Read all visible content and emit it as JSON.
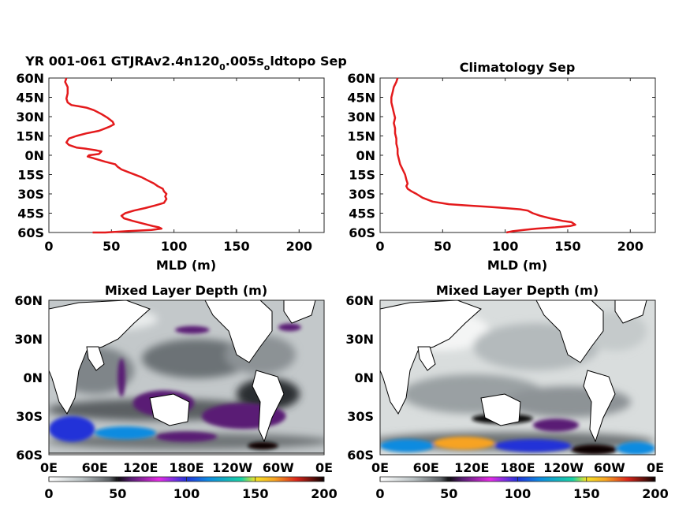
{
  "chart_data": [
    {
      "type": "line",
      "title": "YR 001-061 GTJRAv2.4n120_0.005s_oldtopo Sep",
      "title_parts": {
        "t1": "YR 001-061 GTJRAv2.4n120",
        "sub1": "0",
        "t2": ".005s",
        "sub2": "o",
        "t3": "ldtopo Sep"
      },
      "xlabel": "MLD (m)",
      "ylabel": "",
      "xlim": [
        0,
        220
      ],
      "ylim": [
        -60,
        60
      ],
      "xticks": [
        "0",
        "50",
        "100",
        "150",
        "200"
      ],
      "xtick_values": [
        0,
        50,
        100,
        150,
        200
      ],
      "yticks": [
        "60N",
        "45N",
        "30N",
        "15N",
        "0N",
        "15S",
        "30S",
        "45S",
        "60S"
      ],
      "ytick_values": [
        60,
        45,
        30,
        15,
        0,
        -15,
        -30,
        -45,
        -60
      ],
      "series": [
        {
          "color": "#e41a1c",
          "points": [
            [
              14,
              60
            ],
            [
              13,
              57
            ],
            [
              15,
              53
            ],
            [
              15,
              48
            ],
            [
              14,
              44
            ],
            [
              15,
              41
            ],
            [
              18,
              39
            ],
            [
              24,
              38
            ],
            [
              30,
              37
            ],
            [
              36,
              35
            ],
            [
              42,
              32
            ],
            [
              47,
              29
            ],
            [
              51,
              26
            ],
            [
              52,
              24
            ],
            [
              48,
              22
            ],
            [
              40,
              19
            ],
            [
              30,
              17
            ],
            [
              22,
              15
            ],
            [
              16,
              13
            ],
            [
              14,
              10
            ],
            [
              16,
              8
            ],
            [
              22,
              6
            ],
            [
              30,
              5
            ],
            [
              37,
              4
            ],
            [
              42,
              3
            ],
            [
              40,
              1
            ],
            [
              32,
              0
            ],
            [
              31,
              -1
            ],
            [
              38,
              -3
            ],
            [
              45,
              -5
            ],
            [
              53,
              -7
            ],
            [
              55,
              -9
            ],
            [
              58,
              -11
            ],
            [
              66,
              -14
            ],
            [
              74,
              -17
            ],
            [
              80,
              -20
            ],
            [
              84,
              -22
            ],
            [
              87,
              -24
            ],
            [
              91,
              -26
            ],
            [
              92,
              -28
            ],
            [
              94,
              -30
            ],
            [
              93,
              -32
            ],
            [
              94,
              -34
            ],
            [
              92,
              -37
            ],
            [
              85,
              -39
            ],
            [
              77,
              -41
            ],
            [
              68,
              -43
            ],
            [
              61,
              -45
            ],
            [
              58,
              -47
            ],
            [
              60,
              -49
            ],
            [
              67,
              -51
            ],
            [
              75,
              -53
            ],
            [
              83,
              -55
            ],
            [
              88,
              -56
            ],
            [
              90,
              -57
            ],
            [
              82,
              -58
            ],
            [
              62,
              -59
            ],
            [
              45,
              -60
            ],
            [
              35,
              -60
            ]
          ]
        }
      ]
    },
    {
      "type": "line",
      "title": "Climatology Sep",
      "xlabel": "MLD (m)",
      "ylabel": "",
      "xlim": [
        0,
        220
      ],
      "ylim": [
        -60,
        60
      ],
      "xticks": [
        "0",
        "50",
        "100",
        "150",
        "200"
      ],
      "xtick_values": [
        0,
        50,
        100,
        150,
        200
      ],
      "yticks": [
        "60N",
        "45N",
        "30N",
        "15N",
        "0N",
        "15S",
        "30S",
        "45S",
        "60S"
      ],
      "ytick_values": [
        60,
        45,
        30,
        15,
        0,
        -15,
        -30,
        -45,
        -60
      ],
      "series": [
        {
          "color": "#e41a1c",
          "points": [
            [
              14,
              60
            ],
            [
              13,
              57
            ],
            [
              11,
              53
            ],
            [
              10,
              49
            ],
            [
              9,
              45
            ],
            [
              9,
              41
            ],
            [
              10,
              37
            ],
            [
              11,
              33
            ],
            [
              12,
              29
            ],
            [
              11,
              25
            ],
            [
              12,
              21
            ],
            [
              12,
              17
            ],
            [
              13,
              13
            ],
            [
              13,
              9
            ],
            [
              14,
              5
            ],
            [
              14,
              1
            ],
            [
              15,
              -3
            ],
            [
              16,
              -7
            ],
            [
              18,
              -11
            ],
            [
              20,
              -15
            ],
            [
              21,
              -19
            ],
            [
              22,
              -22
            ],
            [
              21,
              -24
            ],
            [
              22,
              -26
            ],
            [
              25,
              -28
            ],
            [
              29,
              -30
            ],
            [
              34,
              -33
            ],
            [
              42,
              -36
            ],
            [
              55,
              -38
            ],
            [
              70,
              -39
            ],
            [
              85,
              -40
            ],
            [
              100,
              -41
            ],
            [
              112,
              -42
            ],
            [
              118,
              -43
            ],
            [
              122,
              -45
            ],
            [
              128,
              -47
            ],
            [
              136,
              -49
            ],
            [
              146,
              -51
            ],
            [
              153,
              -52
            ],
            [
              156,
              -54
            ],
            [
              152,
              -55
            ],
            [
              140,
              -56
            ],
            [
              125,
              -57
            ],
            [
              115,
              -58
            ],
            [
              106,
              -59
            ],
            [
              101,
              -60
            ]
          ]
        }
      ]
    },
    {
      "type": "heatmap",
      "title": "Mixed Layer Depth (m)",
      "yticks": [
        "60N",
        "30N",
        "0N",
        "30S",
        "60S"
      ],
      "xticks": [
        "0E",
        "60E",
        "120E",
        "180E",
        "120W",
        "60W",
        "0E"
      ],
      "colorbar_ticks": [
        "0",
        "50",
        "100",
        "150",
        "200"
      ],
      "colorbar_range": [
        0,
        200
      ],
      "features": [
        {
          "lon": [
            165,
            210
          ],
          "lat": [
            34,
            40
          ],
          "level": 70
        },
        {
          "lon": [
            300,
            330
          ],
          "lat": [
            36,
            42
          ],
          "level": 70
        },
        {
          "lon": [
            90,
            100
          ],
          "lat": [
            -15,
            15
          ],
          "level": 60
        },
        {
          "lon": [
            110,
            190
          ],
          "lat": [
            -30,
            -10
          ],
          "level": 65
        },
        {
          "lon": [
            200,
            310
          ],
          "lat": [
            -40,
            -20
          ],
          "level": 70
        },
        {
          "lon": [
            0,
            60
          ],
          "lat": [
            -50,
            -30
          ],
          "level": 110
        },
        {
          "lon": [
            60,
            140
          ],
          "lat": [
            -48,
            -38
          ],
          "level": 130
        },
        {
          "lon": [
            140,
            220
          ],
          "lat": [
            -50,
            -42
          ],
          "level": 60
        },
        {
          "lon": [
            260,
            300
          ],
          "lat": [
            -56,
            -50
          ],
          "level": 200
        }
      ]
    },
    {
      "type": "heatmap",
      "title": "Mixed Layer Depth (m)",
      "yticks": [
        "60N",
        "30N",
        "0N",
        "30S",
        "60S"
      ],
      "xticks": [
        "0E",
        "60E",
        "120E",
        "180E",
        "120W",
        "60W",
        "0E"
      ],
      "colorbar_ticks": [
        "0",
        "50",
        "100",
        "150",
        "200"
      ],
      "colorbar_range": [
        0,
        200
      ],
      "features": [
        {
          "lon": [
            0,
            70
          ],
          "lat": [
            -58,
            -48
          ],
          "level": 130
        },
        {
          "lon": [
            70,
            150
          ],
          "lat": [
            -56,
            -46
          ],
          "level": 170
        },
        {
          "lon": [
            150,
            250
          ],
          "lat": [
            -58,
            -48
          ],
          "level": 110
        },
        {
          "lon": [
            250,
            310
          ],
          "lat": [
            -60,
            -52
          ],
          "level": 200
        },
        {
          "lon": [
            310,
            360
          ],
          "lat": [
            -60,
            -50
          ],
          "level": 120
        },
        {
          "lon": [
            200,
            260
          ],
          "lat": [
            -42,
            -32
          ],
          "level": 70
        },
        {
          "lon": [
            120,
            200
          ],
          "lat": [
            -36,
            -28
          ],
          "level": 55
        }
      ]
    }
  ]
}
